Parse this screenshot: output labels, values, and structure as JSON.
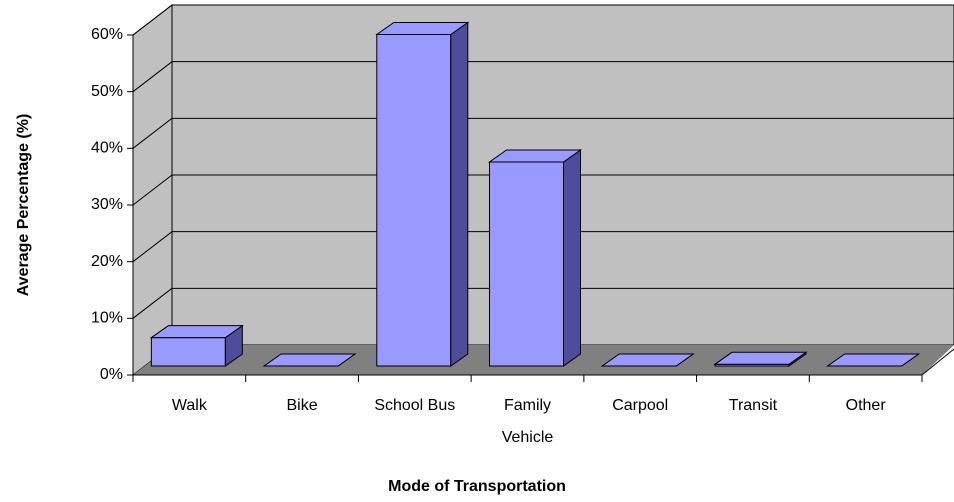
{
  "chart_data": {
    "type": "bar3d",
    "x_label": "Mode of Transportation",
    "y_label": "Average Percentage (%)",
    "categories": [
      "Walk",
      "Bike",
      "School Bus",
      "Family Vehicle",
      "Carpool",
      "Transit",
      "Other"
    ],
    "values": [
      5,
      0,
      58.5,
      36,
      0,
      0.3,
      0
    ],
    "color": "#9999ff",
    "ylim": [
      0,
      60
    ],
    "yticks": [
      {
        "value": 0,
        "label": "0%"
      },
      {
        "value": 10,
        "label": "10%"
      },
      {
        "value": 20,
        "label": "20%"
      },
      {
        "value": 30,
        "label": "30%"
      },
      {
        "value": 40,
        "label": "40%"
      },
      {
        "value": 50,
        "label": "50%"
      },
      {
        "value": 60,
        "label": "60%"
      }
    ],
    "grid": true
  }
}
